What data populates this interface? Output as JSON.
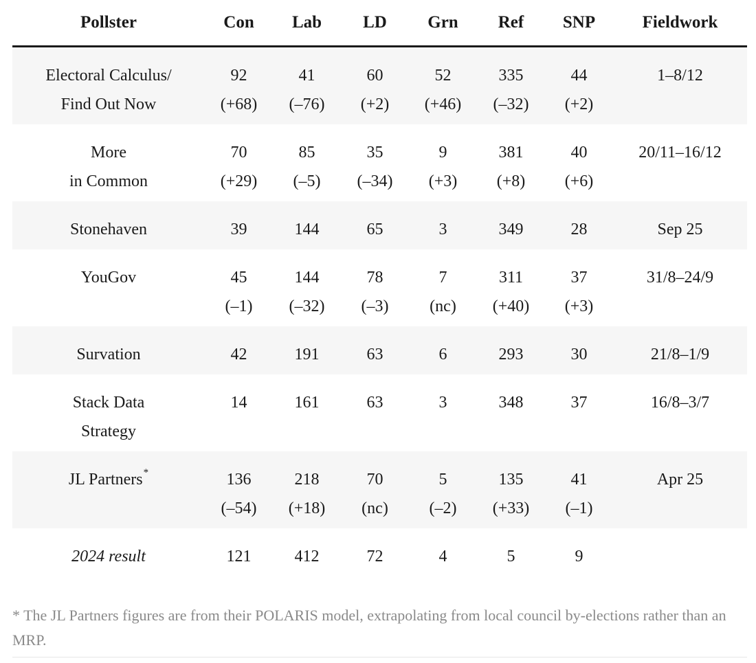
{
  "headers": {
    "pollster": "Pollster",
    "con": "Con",
    "lab": "Lab",
    "ld": "LD",
    "grn": "Grn",
    "ref": "Ref",
    "snp": "SNP",
    "fieldwork": "Fieldwork"
  },
  "rows": [
    {
      "pollster": [
        "Electoral Calculus/",
        "Find Out Now"
      ],
      "con": [
        "92",
        "(+68)"
      ],
      "lab": [
        "41",
        "(–76)"
      ],
      "ld": [
        "60",
        "(+2)"
      ],
      "grn": [
        "52",
        "(+46)"
      ],
      "ref": [
        "335",
        "(–32)"
      ],
      "snp": [
        "44",
        "(+2)"
      ],
      "fieldwork": "1–8/12"
    },
    {
      "pollster": [
        "More",
        "in Common"
      ],
      "con": [
        "70",
        "(+29)"
      ],
      "lab": [
        "85",
        "(–5)"
      ],
      "ld": [
        "35",
        "(–34)"
      ],
      "grn": [
        "9",
        "(+3)"
      ],
      "ref": [
        "381",
        "(+8)"
      ],
      "snp": [
        "40",
        "(+6)"
      ],
      "fieldwork": "20/11–16/12"
    },
    {
      "pollster": [
        "Stonehaven"
      ],
      "con": [
        "39"
      ],
      "lab": [
        "144"
      ],
      "ld": [
        "65"
      ],
      "grn": [
        "3"
      ],
      "ref": [
        "349"
      ],
      "snp": [
        "28"
      ],
      "fieldwork": "Sep 25"
    },
    {
      "pollster": [
        "YouGov"
      ],
      "con": [
        "45",
        "(–1)"
      ],
      "lab": [
        "144",
        "(–32)"
      ],
      "ld": [
        "78",
        "(–3)"
      ],
      "grn": [
        "7",
        "(nc)"
      ],
      "ref": [
        "311",
        "(+40)"
      ],
      "snp": [
        "37",
        "(+3)"
      ],
      "fieldwork": "31/8–24/9"
    },
    {
      "pollster": [
        "Survation"
      ],
      "con": [
        "42"
      ],
      "lab": [
        "191"
      ],
      "ld": [
        "63"
      ],
      "grn": [
        "6"
      ],
      "ref": [
        "293"
      ],
      "snp": [
        "30"
      ],
      "fieldwork": "21/8–1/9"
    },
    {
      "pollster": [
        "Stack Data",
        "Strategy"
      ],
      "con": [
        "14"
      ],
      "lab": [
        "161"
      ],
      "ld": [
        "63"
      ],
      "grn": [
        "3"
      ],
      "ref": [
        "348"
      ],
      "snp": [
        "37"
      ],
      "fieldwork": "16/8–3/7"
    },
    {
      "pollster": [
        "JL Partners"
      ],
      "pollster_mark": "*",
      "con": [
        "136",
        "(–54)"
      ],
      "lab": [
        "218",
        "(+18)"
      ],
      "ld": [
        "70",
        "(nc)"
      ],
      "grn": [
        "5",
        "(–2)"
      ],
      "ref": [
        "135",
        "(+33)"
      ],
      "snp": [
        "41",
        "(–1)"
      ],
      "fieldwork": "Apr 25"
    },
    {
      "pollster": [
        "2024 result"
      ],
      "con": [
        "121"
      ],
      "lab": [
        "412"
      ],
      "ld": [
        "72"
      ],
      "grn": [
        "4"
      ],
      "ref": [
        "5"
      ],
      "snp": [
        "9"
      ],
      "fieldwork": ""
    }
  ],
  "footnote": "* The JL Partners figures are from their POLARIS model, extrapolating from local council by-elections rather than an MRP."
}
